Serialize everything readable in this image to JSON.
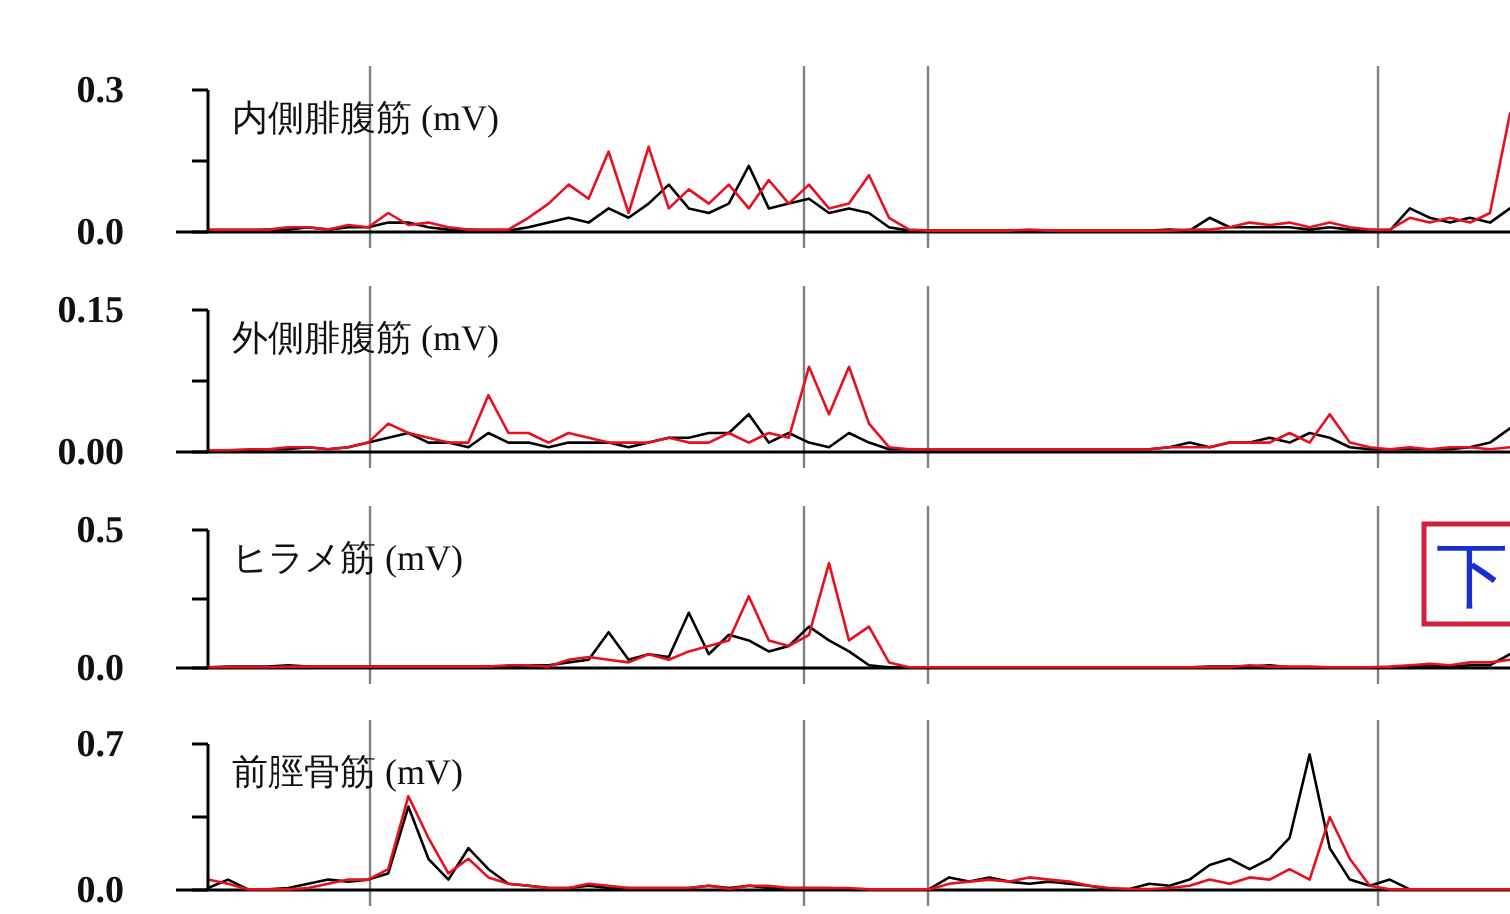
{
  "chart_data": [
    {
      "type": "line",
      "ylabel": "内側腓腹筋 (mV)",
      "categories": [
        null,
        null,
        null,
        null,
        null,
        null,
        null,
        null,
        null,
        null,
        null,
        null,
        null,
        null,
        null,
        null,
        null,
        null,
        null,
        null,
        null,
        null,
        null,
        null,
        null,
        null,
        null,
        null,
        null,
        null,
        null,
        null,
        null,
        null,
        null,
        null,
        null,
        null,
        null,
        null,
        null,
        null,
        null,
        null,
        null,
        null,
        null,
        null,
        null,
        null,
        null,
        null,
        null,
        null,
        null,
        null,
        null,
        null,
        null,
        null,
        null,
        null,
        null,
        null,
        null,
        null
      ],
      "ylim": [
        0,
        0.3
      ],
      "yticks": [
        {
          "value": 0,
          "label": "0.0"
        },
        {
          "value": 0.15,
          "label": null
        },
        {
          "value": 0.3,
          "label": "0.3"
        }
      ],
      "tick_labels": "y",
      "grid": false,
      "marker": "none",
      "line_style": "solid",
      "series": [
        {
          "color": "#000000",
          "values": [
            0.003,
            0.003,
            0.003,
            0.005,
            0.005,
            0.01,
            0.005,
            0.01,
            0.01,
            0.02,
            0.02,
            0.01,
            0.005,
            0.005,
            0.003,
            0.003,
            0.01,
            0.02,
            0.03,
            0.02,
            0.05,
            0.03,
            0.06,
            0.1,
            0.05,
            0.04,
            0.06,
            0.14,
            0.05,
            0.06,
            0.07,
            0.04,
            0.05,
            0.04,
            0.01,
            0.003,
            0.003,
            0.003,
            0.003,
            0.003,
            0.003,
            0.003,
            0.003,
            0.003,
            0.003,
            0.003,
            0.003,
            0.003,
            0.005,
            0.003,
            0.03,
            0.01,
            0.01,
            0.01,
            0.01,
            0.005,
            0.01,
            0.005,
            0.003,
            0.003,
            0.05,
            0.03,
            0.02,
            0.03,
            0.02,
            0.05
          ]
        },
        {
          "color": "#e8101e",
          "values": [
            0.005,
            0.005,
            0.005,
            0.005,
            0.01,
            0.01,
            0.005,
            0.015,
            0.01,
            0.04,
            0.015,
            0.02,
            0.01,
            0.005,
            0.005,
            0.005,
            0.03,
            0.06,
            0.1,
            0.07,
            0.17,
            0.04,
            0.18,
            0.05,
            0.09,
            0.06,
            0.1,
            0.05,
            0.11,
            0.06,
            0.1,
            0.05,
            0.06,
            0.12,
            0.03,
            0.005,
            0.003,
            0.003,
            0.003,
            0.003,
            0.003,
            0.005,
            0.003,
            0.003,
            0.003,
            0.003,
            0.003,
            0.003,
            0.003,
            0.005,
            0.005,
            0.01,
            0.02,
            0.015,
            0.02,
            0.01,
            0.02,
            0.01,
            0.005,
            0.005,
            0.03,
            0.02,
            0.03,
            0.02,
            0.04,
            0.25
          ]
        }
      ]
    },
    {
      "type": "line",
      "ylabel": "外側腓腹筋 (mV)",
      "categories": [
        null,
        null,
        null,
        null,
        null,
        null,
        null,
        null,
        null,
        null,
        null,
        null,
        null,
        null,
        null,
        null,
        null,
        null,
        null,
        null,
        null,
        null,
        null,
        null,
        null,
        null,
        null,
        null,
        null,
        null,
        null,
        null,
        null,
        null,
        null,
        null,
        null,
        null,
        null,
        null,
        null,
        null,
        null,
        null,
        null,
        null,
        null,
        null,
        null,
        null,
        null,
        null,
        null,
        null,
        null,
        null,
        null,
        null,
        null,
        null,
        null,
        null,
        null,
        null,
        null,
        null
      ],
      "ylim": [
        0,
        0.15
      ],
      "yticks": [
        {
          "value": 0,
          "label": "0.00"
        },
        {
          "value": 0.075,
          "label": null
        },
        {
          "value": 0.15,
          "label": "0.15"
        }
      ],
      "tick_labels": "y",
      "grid": false,
      "marker": "none",
      "line_style": "solid",
      "series": [
        {
          "color": "#000000",
          "values": [
            0.002,
            0.002,
            0.002,
            0.003,
            0.003,
            0.005,
            0.003,
            0.005,
            0.01,
            0.015,
            0.02,
            0.01,
            0.01,
            0.005,
            0.02,
            0.01,
            0.01,
            0.005,
            0.01,
            0.01,
            0.01,
            0.005,
            0.01,
            0.015,
            0.015,
            0.02,
            0.02,
            0.04,
            0.01,
            0.02,
            0.01,
            0.005,
            0.02,
            0.01,
            0.003,
            0.003,
            0.003,
            0.003,
            0.003,
            0.003,
            0.003,
            0.003,
            0.003,
            0.003,
            0.003,
            0.003,
            0.003,
            0.003,
            0.005,
            0.01,
            0.005,
            0.01,
            0.01,
            0.015,
            0.01,
            0.02,
            0.015,
            0.005,
            0.003,
            0.003,
            0.003,
            0.003,
            0.003,
            0.005,
            0.01,
            0.025
          ]
        },
        {
          "color": "#e8101e",
          "values": [
            0.002,
            0.002,
            0.003,
            0.003,
            0.005,
            0.005,
            0.003,
            0.005,
            0.01,
            0.03,
            0.02,
            0.015,
            0.01,
            0.01,
            0.06,
            0.02,
            0.02,
            0.01,
            0.02,
            0.015,
            0.01,
            0.01,
            0.01,
            0.015,
            0.01,
            0.01,
            0.02,
            0.01,
            0.02,
            0.015,
            0.09,
            0.04,
            0.09,
            0.03,
            0.005,
            0.003,
            0.003,
            0.003,
            0.003,
            0.003,
            0.003,
            0.003,
            0.003,
            0.003,
            0.003,
            0.003,
            0.003,
            0.003,
            0.005,
            0.005,
            0.005,
            0.01,
            0.01,
            0.01,
            0.02,
            0.01,
            0.04,
            0.01,
            0.005,
            0.003,
            0.005,
            0.003,
            0.005,
            0.005,
            0.003,
            0.005
          ]
        }
      ]
    },
    {
      "type": "line",
      "ylabel": "ヒラメ筋 (mV)",
      "categories": [
        null,
        null,
        null,
        null,
        null,
        null,
        null,
        null,
        null,
        null,
        null,
        null,
        null,
        null,
        null,
        null,
        null,
        null,
        null,
        null,
        null,
        null,
        null,
        null,
        null,
        null,
        null,
        null,
        null,
        null,
        null,
        null,
        null,
        null,
        null,
        null,
        null,
        null,
        null,
        null,
        null,
        null,
        null,
        null,
        null,
        null,
        null,
        null,
        null,
        null,
        null,
        null,
        null,
        null,
        null,
        null,
        null,
        null,
        null,
        null,
        null,
        null,
        null,
        null,
        null,
        null
      ],
      "ylim": [
        0,
        0.5
      ],
      "yticks": [
        {
          "value": 0,
          "label": "0.0"
        },
        {
          "value": 0.25,
          "label": null
        },
        {
          "value": 0.5,
          "label": "0.5"
        }
      ],
      "tick_labels": "y",
      "grid": false,
      "marker": "none",
      "line_style": "solid",
      "annotations": [
        "下"
      ],
      "series": [
        {
          "color": "#000000",
          "values": [
            0.003,
            0.005,
            0.005,
            0.005,
            0.01,
            0.005,
            0.005,
            0.005,
            0.005,
            0.005,
            0.005,
            0.005,
            0.005,
            0.005,
            0.005,
            0.005,
            0.01,
            0.01,
            0.02,
            0.03,
            0.13,
            0.03,
            0.05,
            0.04,
            0.2,
            0.05,
            0.12,
            0.1,
            0.06,
            0.08,
            0.15,
            0.1,
            0.06,
            0.01,
            0.003,
            0.003,
            0.003,
            0.003,
            0.003,
            0.003,
            0.003,
            0.003,
            0.003,
            0.003,
            0.003,
            0.003,
            0.003,
            0.003,
            0.003,
            0.003,
            0.005,
            0.005,
            0.005,
            0.01,
            0.003,
            0.003,
            0.003,
            0.003,
            0.003,
            0.003,
            0.005,
            0.01,
            0.005,
            0.01,
            0.01,
            0.05
          ]
        },
        {
          "color": "#e8101e",
          "values": [
            0.003,
            0.003,
            0.003,
            0.003,
            0.005,
            0.005,
            0.005,
            0.005,
            0.005,
            0.005,
            0.005,
            0.005,
            0.005,
            0.005,
            0.005,
            0.01,
            0.01,
            0.005,
            0.03,
            0.04,
            0.03,
            0.02,
            0.05,
            0.03,
            0.06,
            0.08,
            0.1,
            0.26,
            0.1,
            0.08,
            0.12,
            0.38,
            0.1,
            0.15,
            0.02,
            0.003,
            0.003,
            0.003,
            0.003,
            0.003,
            0.003,
            0.003,
            0.003,
            0.003,
            0.003,
            0.003,
            0.003,
            0.003,
            0.003,
            0.003,
            0.003,
            0.003,
            0.01,
            0.005,
            0.005,
            0.005,
            0.003,
            0.003,
            0.003,
            0.005,
            0.01,
            0.015,
            0.01,
            0.02,
            0.02,
            0.03
          ]
        }
      ]
    },
    {
      "type": "line",
      "ylabel": "前脛骨筋 (mV)",
      "categories": [
        null,
        null,
        null,
        null,
        null,
        null,
        null,
        null,
        null,
        null,
        null,
        null,
        null,
        null,
        null,
        null,
        null,
        null,
        null,
        null,
        null,
        null,
        null,
        null,
        null,
        null,
        null,
        null,
        null,
        null,
        null,
        null,
        null,
        null,
        null,
        null,
        null,
        null,
        null,
        null,
        null,
        null,
        null,
        null,
        null,
        null,
        null,
        null,
        null,
        null,
        null,
        null,
        null,
        null,
        null,
        null,
        null,
        null,
        null,
        null,
        null,
        null,
        null,
        null,
        null,
        null
      ],
      "ylim": [
        0,
        0.7
      ],
      "yticks": [
        {
          "value": 0,
          "label": "0.0"
        },
        {
          "value": 0.35,
          "label": null
        },
        {
          "value": 0.7,
          "label": "0.7"
        }
      ],
      "tick_labels": "y",
      "grid": false,
      "marker": "none",
      "line_style": "solid",
      "series": [
        {
          "color": "#000000",
          "values": [
            0.01,
            0.05,
            0.003,
            0.003,
            0.01,
            0.03,
            0.05,
            0.04,
            0.05,
            0.08,
            0.4,
            0.15,
            0.05,
            0.2,
            0.1,
            0.03,
            0.02,
            0.01,
            0.01,
            0.02,
            0.01,
            0.01,
            0.01,
            0.01,
            0.01,
            0.02,
            0.01,
            0.02,
            0.01,
            0.01,
            0.01,
            0.01,
            0.005,
            0.003,
            0.003,
            0.003,
            0.005,
            0.06,
            0.04,
            0.06,
            0.04,
            0.03,
            0.04,
            0.03,
            0.02,
            0.005,
            0.005,
            0.03,
            0.02,
            0.05,
            0.12,
            0.15,
            0.1,
            0.15,
            0.25,
            0.65,
            0.2,
            0.05,
            0.02,
            0.05,
            0.003,
            0.003,
            0.003,
            0.003,
            0.003,
            0.003
          ]
        },
        {
          "color": "#e8101e",
          "values": [
            0.05,
            0.03,
            0.003,
            0.003,
            0.003,
            0.01,
            0.03,
            0.05,
            0.05,
            0.1,
            0.45,
            0.25,
            0.08,
            0.15,
            0.06,
            0.03,
            0.02,
            0.01,
            0.01,
            0.03,
            0.02,
            0.01,
            0.01,
            0.01,
            0.01,
            0.02,
            0.005,
            0.02,
            0.02,
            0.01,
            0.01,
            0.01,
            0.01,
            0.003,
            0.003,
            0.003,
            0.003,
            0.03,
            0.04,
            0.05,
            0.04,
            0.06,
            0.05,
            0.04,
            0.02,
            0.01,
            0.005,
            0.005,
            0.01,
            0.02,
            0.05,
            0.03,
            0.06,
            0.05,
            0.1,
            0.05,
            0.35,
            0.15,
            0.02,
            0.003,
            0.003,
            0.003,
            0.003,
            0.003,
            0.003,
            0.003
          ]
        }
      ]
    }
  ]
}
